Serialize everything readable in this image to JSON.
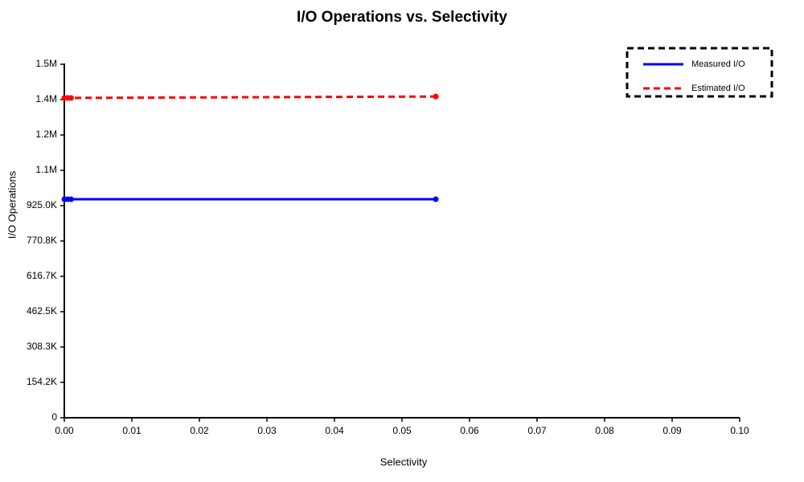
{
  "chart_data": {
    "type": "line",
    "title": "I/O Operations vs. Selectivity",
    "x_label": "Selectivity",
    "y_label": "I/O Operations",
    "x": [
      0,
      0.0005,
      0.001,
      0.055
    ],
    "series": [
      {
        "name": "Measured I/O",
        "color": "#0000ff",
        "linestyle": "solid",
        "values": [
          953000,
          953000,
          953000,
          953000
        ]
      },
      {
        "name": "Estimated I/O",
        "color": "#ff0000",
        "linestyle": "dashed",
        "values": [
          1395000,
          1395000,
          1395000,
          1401000
        ]
      }
    ],
    "xlim": [
      0,
      0.1
    ],
    "xticks": [
      {
        "value": 0,
        "label": "0.00"
      },
      {
        "value": 0.01,
        "label": "0.01"
      },
      {
        "value": 0.02,
        "label": "0.02"
      },
      {
        "value": 0.03,
        "label": "0.03"
      },
      {
        "value": 0.04,
        "label": "0.04"
      },
      {
        "value": 0.05,
        "label": "0.05"
      },
      {
        "value": 0.06,
        "label": "0.06"
      },
      {
        "value": 0.07,
        "label": "0.07"
      },
      {
        "value": 0.08,
        "label": "0.08"
      },
      {
        "value": 0.09,
        "label": "0.09"
      },
      {
        "value": 0.1,
        "label": "0.10"
      }
    ],
    "ylim": [
      0,
      1541667
    ],
    "yticks": [
      0,
      {
        "value": 154167,
        "label": "154.2K"
      },
      {
        "value": 308333,
        "label": "308.3K"
      },
      {
        "value": 462500,
        "label": "462.5K"
      },
      {
        "value": 616667,
        "label": "616.7K"
      },
      {
        "value": 770833,
        "label": "770.8K"
      },
      {
        "value": 925000,
        "label": "925.0K"
      },
      {
        "value": 1079167,
        "label": "1.1M"
      },
      {
        "value": 1233333,
        "label": "1.2M"
      },
      {
        "value": 1387500,
        "label": "1.4M"
      },
      {
        "value": 1541667,
        "label": "1.5M"
      }
    ],
    "grid": false,
    "legend": "upper right"
  }
}
